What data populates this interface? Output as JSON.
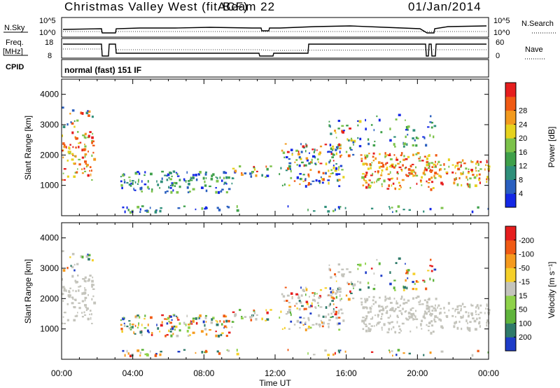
{
  "header": {
    "station": "Christmas Valley West (fitACF)",
    "beam": "Beam 22",
    "date": "01/Jan/2014"
  },
  "panels": {
    "nsky_label": "N.Sky",
    "nsearch_label": "N.Search",
    "freq_label": "Freq.",
    "freq_unit": "[MHz]",
    "nave_label": "Nave",
    "cpid_label": "CPID",
    "cpid_value": "normal (fast) 151 IF",
    "nsky_ticks": [
      "10^5",
      "10^0"
    ],
    "nsearch_ticks": [
      "10^5",
      "10^0"
    ],
    "freq_ticks": [
      "18",
      "8"
    ],
    "nave_ticks": [
      "60",
      "0"
    ]
  },
  "chart_data": [
    {
      "type": "heatmap",
      "panel": "power",
      "ylabel": "Slant Range [km]",
      "yticks": [
        1000,
        2000,
        3000,
        4000
      ],
      "ylim": [
        0,
        4500
      ],
      "xlabel": "Time UT",
      "xticks": [
        "00:00",
        "04:00",
        "08:00",
        "12:00",
        "16:00",
        "20:00",
        "00:00"
      ],
      "colorbar": {
        "label": "Power [dB]",
        "ticks": [
          4,
          8,
          12,
          16,
          20,
          24,
          28
        ],
        "colors": [
          "#1428e6",
          "#2a5fbf",
          "#2f8f7a",
          "#3fa04a",
          "#7cc24a",
          "#e6d21e",
          "#f29a1e",
          "#f05a14",
          "#e61e1e"
        ]
      }
    },
    {
      "type": "heatmap",
      "panel": "velocity",
      "ylabel": "Slant Range [km]",
      "yticks": [
        1000,
        2000,
        3000,
        4000
      ],
      "ylim": [
        0,
        4500
      ],
      "xlabel": "Time UT",
      "xticks": [
        "00:00",
        "04:00",
        "08:00",
        "12:00",
        "16:00",
        "20:00",
        "00:00"
      ],
      "colorbar": {
        "label": "Velocity [m s⁻¹]",
        "ticks": [
          "200",
          "100",
          "50",
          "15",
          "-15",
          "-50",
          "-100",
          "-200"
        ],
        "colors": [
          "#1e3cc8",
          "#2f7a6a",
          "#5fb43c",
          "#8fd24a",
          "#c4c4bc",
          "#f5d02a",
          "#f59a1e",
          "#f05a14",
          "#e61e1e"
        ]
      }
    }
  ]
}
